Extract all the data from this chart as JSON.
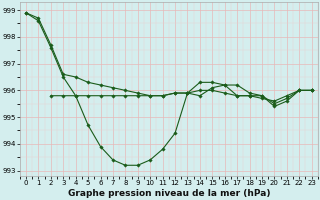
{
  "line1": {
    "x": [
      0,
      1,
      2,
      3,
      4,
      5,
      6,
      7,
      8,
      9,
      10,
      11,
      12,
      13,
      14,
      15,
      16,
      17,
      18,
      19,
      20,
      21,
      22,
      23
    ],
    "y": [
      998.9,
      998.7,
      997.7,
      996.6,
      996.5,
      996.3,
      996.2,
      996.1,
      996.0,
      995.9,
      995.8,
      995.8,
      995.9,
      995.9,
      996.0,
      996.0,
      995.9,
      995.8,
      995.8,
      995.7,
      995.6,
      995.8,
      996.0,
      996.0
    ],
    "color": "#1a5c1a",
    "linewidth": 0.8,
    "marker": "D",
    "markersize": 1.8
  },
  "line2": {
    "x": [
      0,
      1,
      2,
      3,
      4,
      5,
      6,
      7,
      8,
      9,
      10,
      11,
      12,
      13,
      14,
      15,
      16,
      17,
      18,
      19,
      20,
      21,
      22,
      23
    ],
    "y": [
      998.9,
      998.6,
      997.6,
      996.5,
      995.8,
      994.7,
      993.9,
      993.4,
      993.2,
      993.2,
      993.4,
      993.8,
      994.4,
      995.9,
      995.8,
      996.1,
      996.2,
      996.2,
      995.9,
      995.8,
      995.5,
      995.7,
      996.0,
      996.0
    ],
    "color": "#1a5c1a",
    "linewidth": 0.8,
    "marker": "D",
    "markersize": 1.8
  },
  "line3": {
    "x": [
      2,
      3,
      4,
      5,
      6,
      7,
      8,
      9,
      10,
      11,
      12,
      13,
      14,
      15,
      16,
      17,
      18,
      19,
      20,
      21,
      22,
      23
    ],
    "y": [
      995.8,
      995.8,
      995.8,
      995.8,
      995.8,
      995.8,
      995.8,
      995.8,
      995.8,
      995.8,
      995.9,
      995.9,
      996.3,
      996.3,
      996.2,
      995.8,
      995.8,
      995.8,
      995.4,
      995.6,
      996.0,
      996.0
    ],
    "color": "#1a5c1a",
    "linewidth": 0.8,
    "marker": "D",
    "markersize": 1.8
  },
  "background_color": "#d4eeee",
  "grid_major_color": "#e8b8b8",
  "grid_minor_color": "#e8d0d0",
  "title": "Graphe pression niveau de la mer (hPa)",
  "title_fontsize": 6.5,
  "tick_fontsize": 5,
  "ylim": [
    992.8,
    999.3
  ],
  "xlim": [
    -0.5,
    23.5
  ],
  "yticks": [
    993,
    994,
    995,
    996,
    997,
    998,
    999
  ],
  "xticks": [
    0,
    1,
    2,
    3,
    4,
    5,
    6,
    7,
    8,
    9,
    10,
    11,
    12,
    13,
    14,
    15,
    16,
    17,
    18,
    19,
    20,
    21,
    22,
    23
  ]
}
